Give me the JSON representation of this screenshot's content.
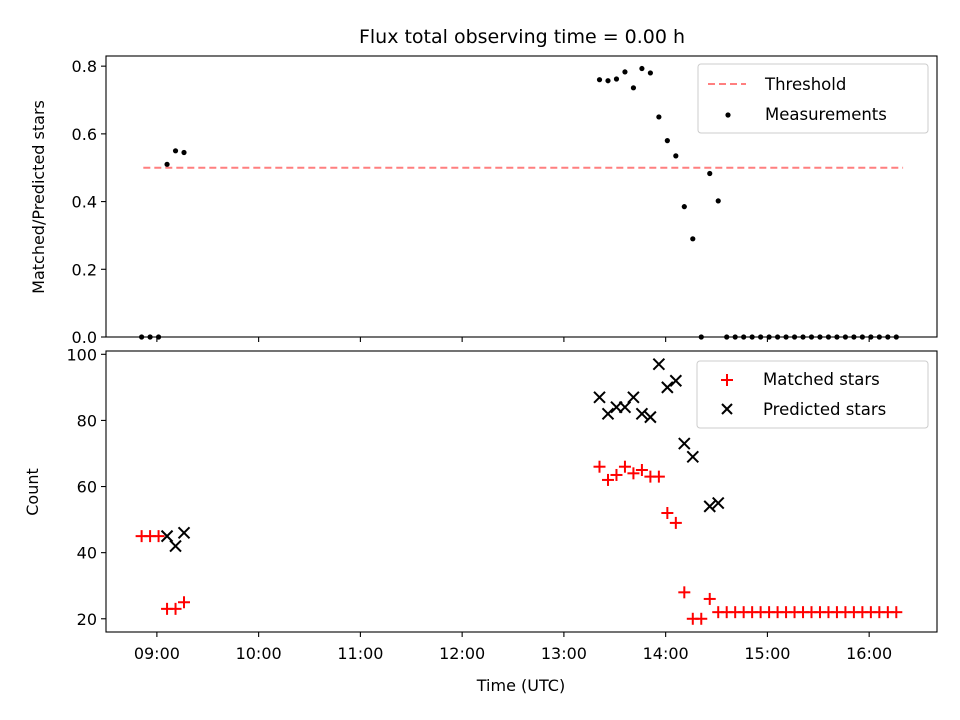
{
  "chart_data": [
    {
      "type": "scatter",
      "title": "Flux total observing time = 0.00 h",
      "xlabel": "",
      "ylabel": "Matched/Predicted stars",
      "xlim": [
        "08:30",
        "16:40"
      ],
      "ylim": [
        0,
        0.83
      ],
      "yticks": [
        0.0,
        0.2,
        0.4,
        0.6,
        0.8
      ],
      "ytick_labels": [
        "0.0",
        "0.2",
        "0.4",
        "0.6",
        "0.8"
      ],
      "legend_position": "top-right",
      "grid": false,
      "threshold": {
        "name": "Threshold",
        "y": 0.5,
        "x_range": [
          "08:52",
          "16:20"
        ],
        "color": "#ff7f7f",
        "style": "dashed"
      },
      "series": [
        {
          "name": "Measurements",
          "marker": "dot",
          "color": "#000000",
          "points": [
            [
              "08:51",
              0.0
            ],
            [
              "08:56",
              0.0
            ],
            [
              "09:01",
              0.0
            ],
            [
              "09:06",
              0.51
            ],
            [
              "09:11",
              0.55
            ],
            [
              "09:16",
              0.545
            ],
            [
              "13:21",
              0.76
            ],
            [
              "13:26",
              0.757
            ],
            [
              "13:31",
              0.762
            ],
            [
              "13:36",
              0.783
            ],
            [
              "13:41",
              0.736
            ],
            [
              "13:46",
              0.793
            ],
            [
              "13:51",
              0.78
            ],
            [
              "13:56",
              0.65
            ],
            [
              "14:01",
              0.58
            ],
            [
              "14:06",
              0.535
            ],
            [
              "14:11",
              0.385
            ],
            [
              "14:16",
              0.29
            ],
            [
              "14:21",
              0.0
            ],
            [
              "14:26",
              0.483
            ],
            [
              "14:31",
              0.402
            ],
            [
              "14:36",
              0.0
            ],
            [
              "14:41",
              0.0
            ],
            [
              "14:46",
              0.0
            ],
            [
              "14:51",
              0.0
            ],
            [
              "14:56",
              0.0
            ],
            [
              "15:01",
              0.0
            ],
            [
              "15:06",
              0.0
            ],
            [
              "15:11",
              0.0
            ],
            [
              "15:16",
              0.0
            ],
            [
              "15:21",
              0.0
            ],
            [
              "15:26",
              0.0
            ],
            [
              "15:31",
              0.0
            ],
            [
              "15:36",
              0.0
            ],
            [
              "15:41",
              0.0
            ],
            [
              "15:46",
              0.0
            ],
            [
              "15:51",
              0.0
            ],
            [
              "15:56",
              0.0
            ],
            [
              "16:01",
              0.0
            ],
            [
              "16:06",
              0.0
            ],
            [
              "16:11",
              0.0
            ],
            [
              "16:16",
              0.0
            ]
          ]
        }
      ]
    },
    {
      "type": "scatter",
      "title": "",
      "xlabel": "Time (UTC)",
      "ylabel": "Count",
      "xlim": [
        "08:30",
        "16:40"
      ],
      "ylim": [
        16,
        101
      ],
      "xticks": [
        "09:00",
        "10:00",
        "11:00",
        "12:00",
        "13:00",
        "14:00",
        "15:00",
        "16:00"
      ],
      "yticks": [
        20,
        40,
        60,
        80,
        100
      ],
      "ytick_labels": [
        "20",
        "40",
        "60",
        "80",
        "100"
      ],
      "legend_position": "top-right",
      "grid": false,
      "series": [
        {
          "name": "Matched stars",
          "marker": "plus",
          "color": "#ff0000",
          "points": [
            [
              "08:51",
              45
            ],
            [
              "08:56",
              45
            ],
            [
              "09:01",
              45
            ],
            [
              "09:06",
              23
            ],
            [
              "09:11",
              23
            ],
            [
              "09:16",
              25
            ],
            [
              "13:21",
              66
            ],
            [
              "13:26",
              62
            ],
            [
              "13:31",
              63.5
            ],
            [
              "13:36",
              66
            ],
            [
              "13:41",
              64
            ],
            [
              "13:46",
              65
            ],
            [
              "13:51",
              63
            ],
            [
              "13:56",
              63
            ],
            [
              "14:01",
              52
            ],
            [
              "14:06",
              49
            ],
            [
              "14:11",
              28
            ],
            [
              "14:16",
              20
            ],
            [
              "14:21",
              20
            ],
            [
              "14:26",
              26
            ],
            [
              "14:31",
              22
            ],
            [
              "14:36",
              22
            ],
            [
              "14:41",
              22
            ],
            [
              "14:46",
              22
            ],
            [
              "14:51",
              22
            ],
            [
              "14:56",
              22
            ],
            [
              "15:01",
              22
            ],
            [
              "15:06",
              22
            ],
            [
              "15:11",
              22
            ],
            [
              "15:16",
              22
            ],
            [
              "15:21",
              22
            ],
            [
              "15:26",
              22
            ],
            [
              "15:31",
              22
            ],
            [
              "15:36",
              22
            ],
            [
              "15:41",
              22
            ],
            [
              "15:46",
              22
            ],
            [
              "15:51",
              22
            ],
            [
              "15:56",
              22
            ],
            [
              "16:01",
              22
            ],
            [
              "16:06",
              22
            ],
            [
              "16:11",
              22
            ],
            [
              "16:16",
              22
            ]
          ]
        },
        {
          "name": "Predicted stars",
          "marker": "x",
          "color": "#000000",
          "points": [
            [
              "09:06",
              45
            ],
            [
              "09:11",
              42
            ],
            [
              "09:16",
              46
            ],
            [
              "13:21",
              87
            ],
            [
              "13:26",
              82
            ],
            [
              "13:31",
              84
            ],
            [
              "13:36",
              84
            ],
            [
              "13:41",
              87
            ],
            [
              "13:46",
              82
            ],
            [
              "13:51",
              81
            ],
            [
              "13:56",
              97
            ],
            [
              "14:01",
              90
            ],
            [
              "14:06",
              92
            ],
            [
              "14:11",
              73
            ],
            [
              "14:16",
              69
            ],
            [
              "14:26",
              54
            ],
            [
              "14:31",
              55
            ]
          ]
        }
      ]
    }
  ]
}
